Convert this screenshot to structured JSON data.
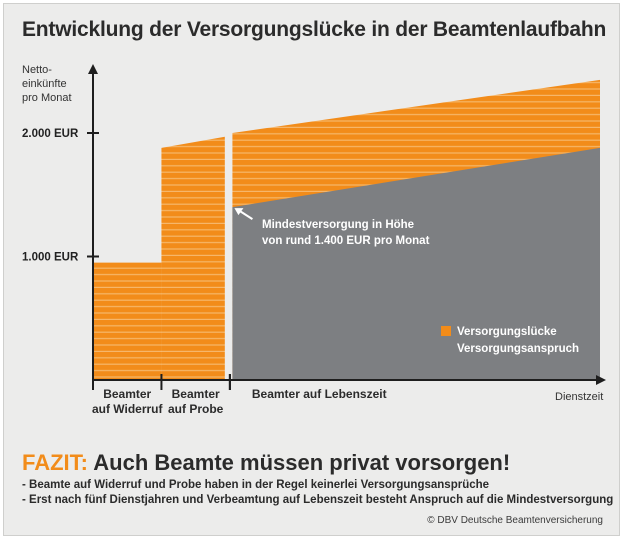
{
  "page": {
    "title": "Entwicklung der Versorgungslücke in der Beamtenlaufbahn",
    "fazit_lead": "FAZIT:",
    "fazit_rest": " Auch Beamte müssen privat vorsorgen!",
    "bullets": [
      "- Beamte auf Widerruf und Probe haben in der Regel keinerlei Versorgungsansprüche",
      "- Erst nach fünf Dienstjahren und Verbeamtung auf Lebenszeit besteht Anspruch auf die Mindestversorgung"
    ],
    "copyright": "© DBV Deutsche Beamtenversicherung"
  },
  "colors": {
    "orange": "#f28c1a",
    "stripe": "#f6b76a",
    "grey": "#7d7f82",
    "axis": "#1e1e1e",
    "background": "#ececeb",
    "title_text": "#2b2b2b",
    "fazit_accent": "#f28c1a"
  },
  "chart_data": {
    "type": "area",
    "ylabel": [
      "Netto-",
      "einkünfte",
      "pro Monat"
    ],
    "xlabel": "Dienstzeit",
    "y_ticks": [
      {
        "value": 1000,
        "label": "1.000 EUR"
      },
      {
        "value": 2000,
        "label": "2.000 EUR"
      }
    ],
    "ylim": [
      0,
      2500
    ],
    "xlim": [
      0,
      100
    ],
    "phases": [
      {
        "name": [
          "Beamter",
          "auf Widerruf"
        ],
        "x_start": 0,
        "x_end": 13.5
      },
      {
        "name": [
          "Beamter",
          "auf Probe"
        ],
        "x_start": 13.5,
        "x_end": 27
      },
      {
        "name": [
          "Beamter auf Lebenszeit"
        ],
        "x_start": 27,
        "x_end": 100
      }
    ],
    "series": [
      {
        "name": "Versorgungslücke",
        "color": "orange",
        "segments": [
          {
            "x": [
              0,
              13.5
            ],
            "y": [
              950,
              950
            ]
          },
          {
            "x": [
              13.5,
              26
            ],
            "y": [
              1880,
              1970
            ]
          },
          {
            "x": [
              27.5,
              100
            ],
            "y": [
              2000,
              2430
            ]
          }
        ]
      },
      {
        "name": "Versorgungsanspruch",
        "color": "grey",
        "segments": [
          {
            "x": [
              27.5,
              100
            ],
            "y": [
              1400,
              1880
            ]
          }
        ]
      }
    ],
    "legend": {
      "position": "bottom-right",
      "entries": [
        "Versorgungslücke",
        "Versorgungsanspruch"
      ]
    },
    "annotation": {
      "lines": [
        "Mindestversorgung in Höhe",
        "von rund 1.400 EUR pro Monat"
      ],
      "x": 27.5,
      "y": 1400
    },
    "grid": false
  }
}
